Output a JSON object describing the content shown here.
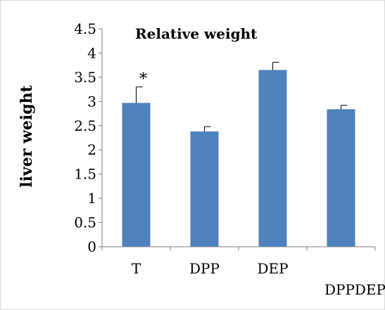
{
  "chart_data": {
    "type": "bar",
    "title": "Relative weight",
    "xlabel": "",
    "ylabel": "liver weight",
    "categories": [
      "T",
      "DPP",
      "DEP",
      "DPPDEP"
    ],
    "series": [
      {
        "values": [
          2.97,
          2.38,
          3.65,
          2.84
        ],
        "errors": [
          0.33,
          0.1,
          0.16,
          0.08
        ]
      }
    ],
    "annotations": [
      {
        "category": "T",
        "text": "*"
      }
    ],
    "ylim": [
      0,
      4.5
    ],
    "yticks": [
      "0",
      "0.5",
      "1",
      "1.5",
      "2",
      "2.5",
      "3",
      "3.5",
      "4",
      "4.5"
    ],
    "grid": false,
    "legend": "none",
    "colors": {
      "bar": "#4f81bd",
      "axis": "#7f7f7f",
      "frame": "#d9d9d9"
    }
  }
}
